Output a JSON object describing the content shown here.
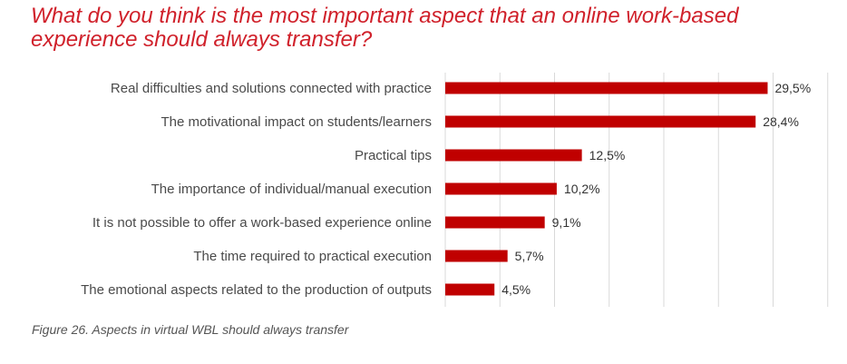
{
  "header": {
    "title": "What do you think is the most important aspect that an online work-based experience should always transfer?"
  },
  "caption": "Figure 26. Aspects in virtual WBL should always transfer",
  "colors": {
    "bar": "#c00000",
    "title": "#d0212b"
  },
  "chart_data": {
    "type": "bar",
    "orientation": "horizontal",
    "title": "What do you think is the most important aspect that an online work-based experience should always transfer?",
    "categories": [
      "Real difficulties and solutions connected with practice",
      "The motivational impact on students/learners",
      "Practical tips",
      "The importance of individual/manual execution",
      "It is not possible to offer a work-based experience online",
      "The time required to practical execution",
      "The emotional aspects related to the production of outputs"
    ],
    "values": [
      29.5,
      28.4,
      12.5,
      10.2,
      9.1,
      5.7,
      4.5
    ],
    "value_labels": [
      "29,5%",
      "28,4%",
      "12,5%",
      "10,2%",
      "9,1%",
      "5,7%",
      "4,5%"
    ],
    "xlim": [
      0,
      35
    ],
    "grid": true,
    "legend": "none"
  }
}
